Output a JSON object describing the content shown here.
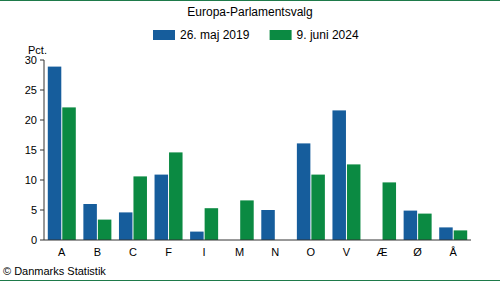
{
  "chart_data": {
    "type": "bar",
    "title": "Europa-Parlamentsvalg",
    "y_label": "Pct.",
    "source": "© Danmarks Statistik",
    "categories": [
      "A",
      "B",
      "C",
      "F",
      "I",
      "M",
      "N",
      "O",
      "V",
      "Æ",
      "Ø",
      "Å"
    ],
    "series": [
      {
        "name": "26. maj 2019",
        "color": "#165d9c",
        "values": [
          28.9,
          6.0,
          4.6,
          10.9,
          1.4,
          null,
          5.0,
          16.1,
          21.6,
          null,
          4.9,
          2.1
        ]
      },
      {
        "name": "9. juni 2024",
        "color": "#0b8a42",
        "values": [
          22.1,
          3.4,
          10.6,
          14.6,
          5.3,
          6.6,
          null,
          10.9,
          12.6,
          9.6,
          4.4,
          1.6
        ]
      }
    ],
    "ylim": [
      0,
      30
    ],
    "yticks": [
      0,
      5,
      10,
      15,
      20,
      25,
      30
    ],
    "grid": false,
    "legend": "top"
  }
}
